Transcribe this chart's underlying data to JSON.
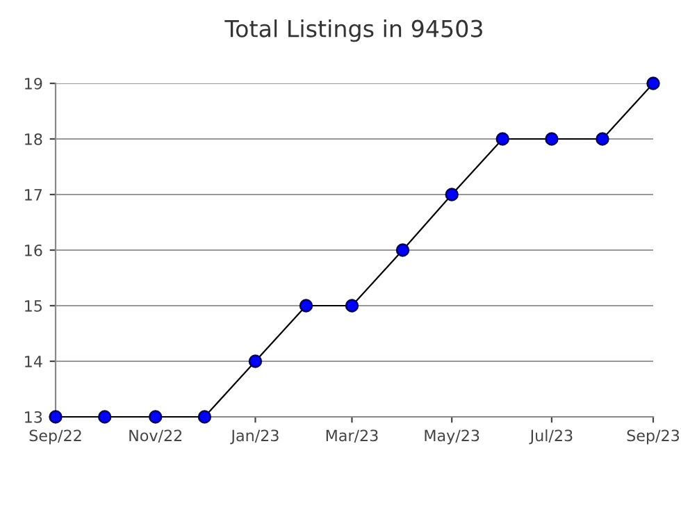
{
  "chart_data": {
    "type": "line",
    "title": "Total Listings in 94503",
    "x": [
      "2022-09",
      "2022-10",
      "2022-11",
      "2022-12",
      "2023-01",
      "2023-02",
      "2023-03",
      "2023-04",
      "2023-05",
      "2023-06",
      "2023-07",
      "2023-08",
      "2023-09"
    ],
    "series": [
      {
        "color": "#0000ff",
        "values": [
          13,
          13,
          13,
          13,
          14,
          15,
          15,
          16,
          17,
          18,
          18,
          18,
          19
        ]
      }
    ],
    "xlim": [
      "2022-09",
      "2023-09"
    ],
    "xticks": [
      {
        "value": "2022-09",
        "label": "Sep/22"
      },
      {
        "value": "2022-11",
        "label": "Nov/22"
      },
      {
        "value": "2023-01",
        "label": "Jan/23"
      },
      {
        "value": "2023-03",
        "label": "Mar/23"
      },
      {
        "value": "2023-05",
        "label": "May/23"
      },
      {
        "value": "2023-07",
        "label": "Jul/23"
      },
      {
        "value": "2023-09",
        "label": "Sep/23"
      }
    ],
    "ylim": [
      13,
      19
    ],
    "yticks": [
      13,
      14,
      15,
      16,
      17,
      18,
      19
    ],
    "grid": "y",
    "marker": "circle",
    "line_style": "solid",
    "legend": false
  }
}
